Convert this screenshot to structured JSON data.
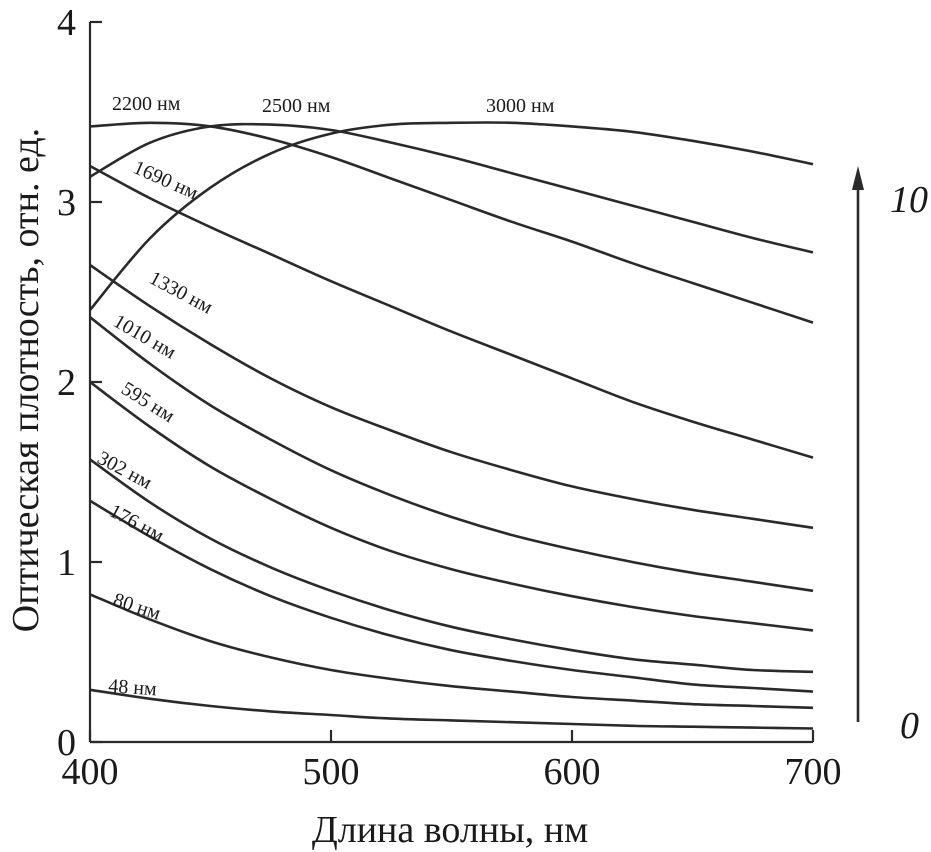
{
  "chart_data": {
    "type": "line",
    "title": "",
    "xlabel": "Длина волны, нм",
    "ylabel": "Оптическая плотность, отн. ед.",
    "xlim": [
      400,
      700
    ],
    "ylim": [
      0,
      4
    ],
    "xticks": [
      "400",
      "500",
      "600",
      "700"
    ],
    "yticks": [
      "0",
      "1",
      "2",
      "3",
      "4"
    ],
    "grid": false,
    "legend": "none",
    "x": [
      400,
      425,
      450,
      475,
      500,
      525,
      550,
      575,
      600,
      625,
      650,
      675,
      700
    ],
    "series": [
      {
        "name": "48 нм",
        "values": [
          0.29,
          0.24,
          0.2,
          0.17,
          0.15,
          0.13,
          0.12,
          0.11,
          0.1,
          0.09,
          0.085,
          0.08,
          0.075
        ]
      },
      {
        "name": "80 нм",
        "values": [
          0.82,
          0.68,
          0.56,
          0.47,
          0.4,
          0.35,
          0.31,
          0.28,
          0.25,
          0.23,
          0.21,
          0.2,
          0.19
        ]
      },
      {
        "name": "176 нм",
        "values": [
          1.34,
          1.14,
          0.96,
          0.81,
          0.69,
          0.59,
          0.51,
          0.45,
          0.4,
          0.36,
          0.32,
          0.3,
          0.28
        ]
      },
      {
        "name": "302 нм",
        "values": [
          1.57,
          1.33,
          1.13,
          0.97,
          0.84,
          0.73,
          0.64,
          0.57,
          0.51,
          0.46,
          0.43,
          0.4,
          0.39
        ]
      },
      {
        "name": "595 нм",
        "values": [
          2.0,
          1.75,
          1.53,
          1.35,
          1.19,
          1.06,
          0.96,
          0.88,
          0.81,
          0.75,
          0.7,
          0.66,
          0.62
        ]
      },
      {
        "name": "1010 нм",
        "values": [
          2.36,
          2.1,
          1.87,
          1.68,
          1.51,
          1.37,
          1.25,
          1.15,
          1.07,
          1.0,
          0.94,
          0.89,
          0.84
        ]
      },
      {
        "name": "1330 нм",
        "values": [
          2.65,
          2.42,
          2.21,
          2.02,
          1.86,
          1.73,
          1.61,
          1.51,
          1.42,
          1.35,
          1.29,
          1.24,
          1.19
        ]
      },
      {
        "name": "1690 нм",
        "values": [
          3.2,
          3.02,
          2.86,
          2.71,
          2.56,
          2.42,
          2.28,
          2.15,
          2.02,
          1.89,
          1.78,
          1.68,
          1.58
        ]
      },
      {
        "name": "2200 нм",
        "values": [
          3.42,
          3.44,
          3.42,
          3.35,
          3.25,
          3.13,
          3.01,
          2.89,
          2.78,
          2.66,
          2.55,
          2.44,
          2.33
        ]
      },
      {
        "name": "2500 нм",
        "values": [
          3.14,
          3.33,
          3.42,
          3.43,
          3.4,
          3.33,
          3.25,
          3.16,
          3.07,
          2.98,
          2.89,
          2.8,
          2.72
        ]
      },
      {
        "name": "3000 нм",
        "values": [
          2.4,
          2.8,
          3.08,
          3.27,
          3.38,
          3.43,
          3.44,
          3.44,
          3.42,
          3.39,
          3.34,
          3.28,
          3.21
        ]
      }
    ],
    "arrow": {
      "from_label": "0",
      "to_label": "10",
      "direction": "up"
    }
  }
}
